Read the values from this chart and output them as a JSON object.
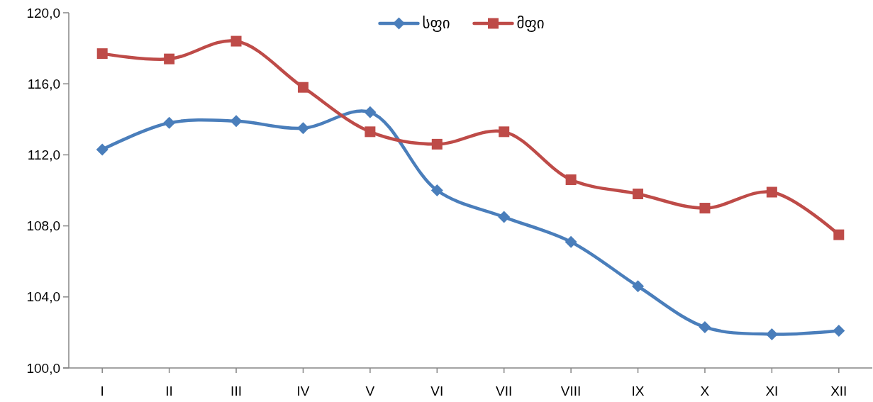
{
  "chart_data": {
    "type": "line",
    "categories": [
      "I",
      "II",
      "III",
      "IV",
      "V",
      "VI",
      "VII",
      "VIII",
      "IX",
      "X",
      "XI",
      "XII"
    ],
    "series": [
      {
        "name": "სფი",
        "color": "#4a7ebb",
        "marker": "diamond",
        "values": [
          112.3,
          113.8,
          113.9,
          113.5,
          114.4,
          110.0,
          108.5,
          107.1,
          104.6,
          102.3,
          101.9,
          102.1
        ]
      },
      {
        "name": "მფი",
        "color": "#be4b48",
        "marker": "square",
        "values": [
          117.7,
          117.4,
          118.4,
          115.8,
          113.3,
          112.6,
          113.3,
          110.6,
          109.8,
          109.0,
          109.9,
          107.5
        ]
      }
    ],
    "ylim": [
      100,
      120
    ],
    "yticks": [
      {
        "value": 100,
        "label": "100,0"
      },
      {
        "value": 104,
        "label": "104,0"
      },
      {
        "value": 108,
        "label": "108,0"
      },
      {
        "value": 112,
        "label": "112,0"
      },
      {
        "value": 116,
        "label": "116,0"
      },
      {
        "value": 120,
        "label": "120,0"
      }
    ],
    "grid": false,
    "legend": "top",
    "line_style": "solid"
  }
}
